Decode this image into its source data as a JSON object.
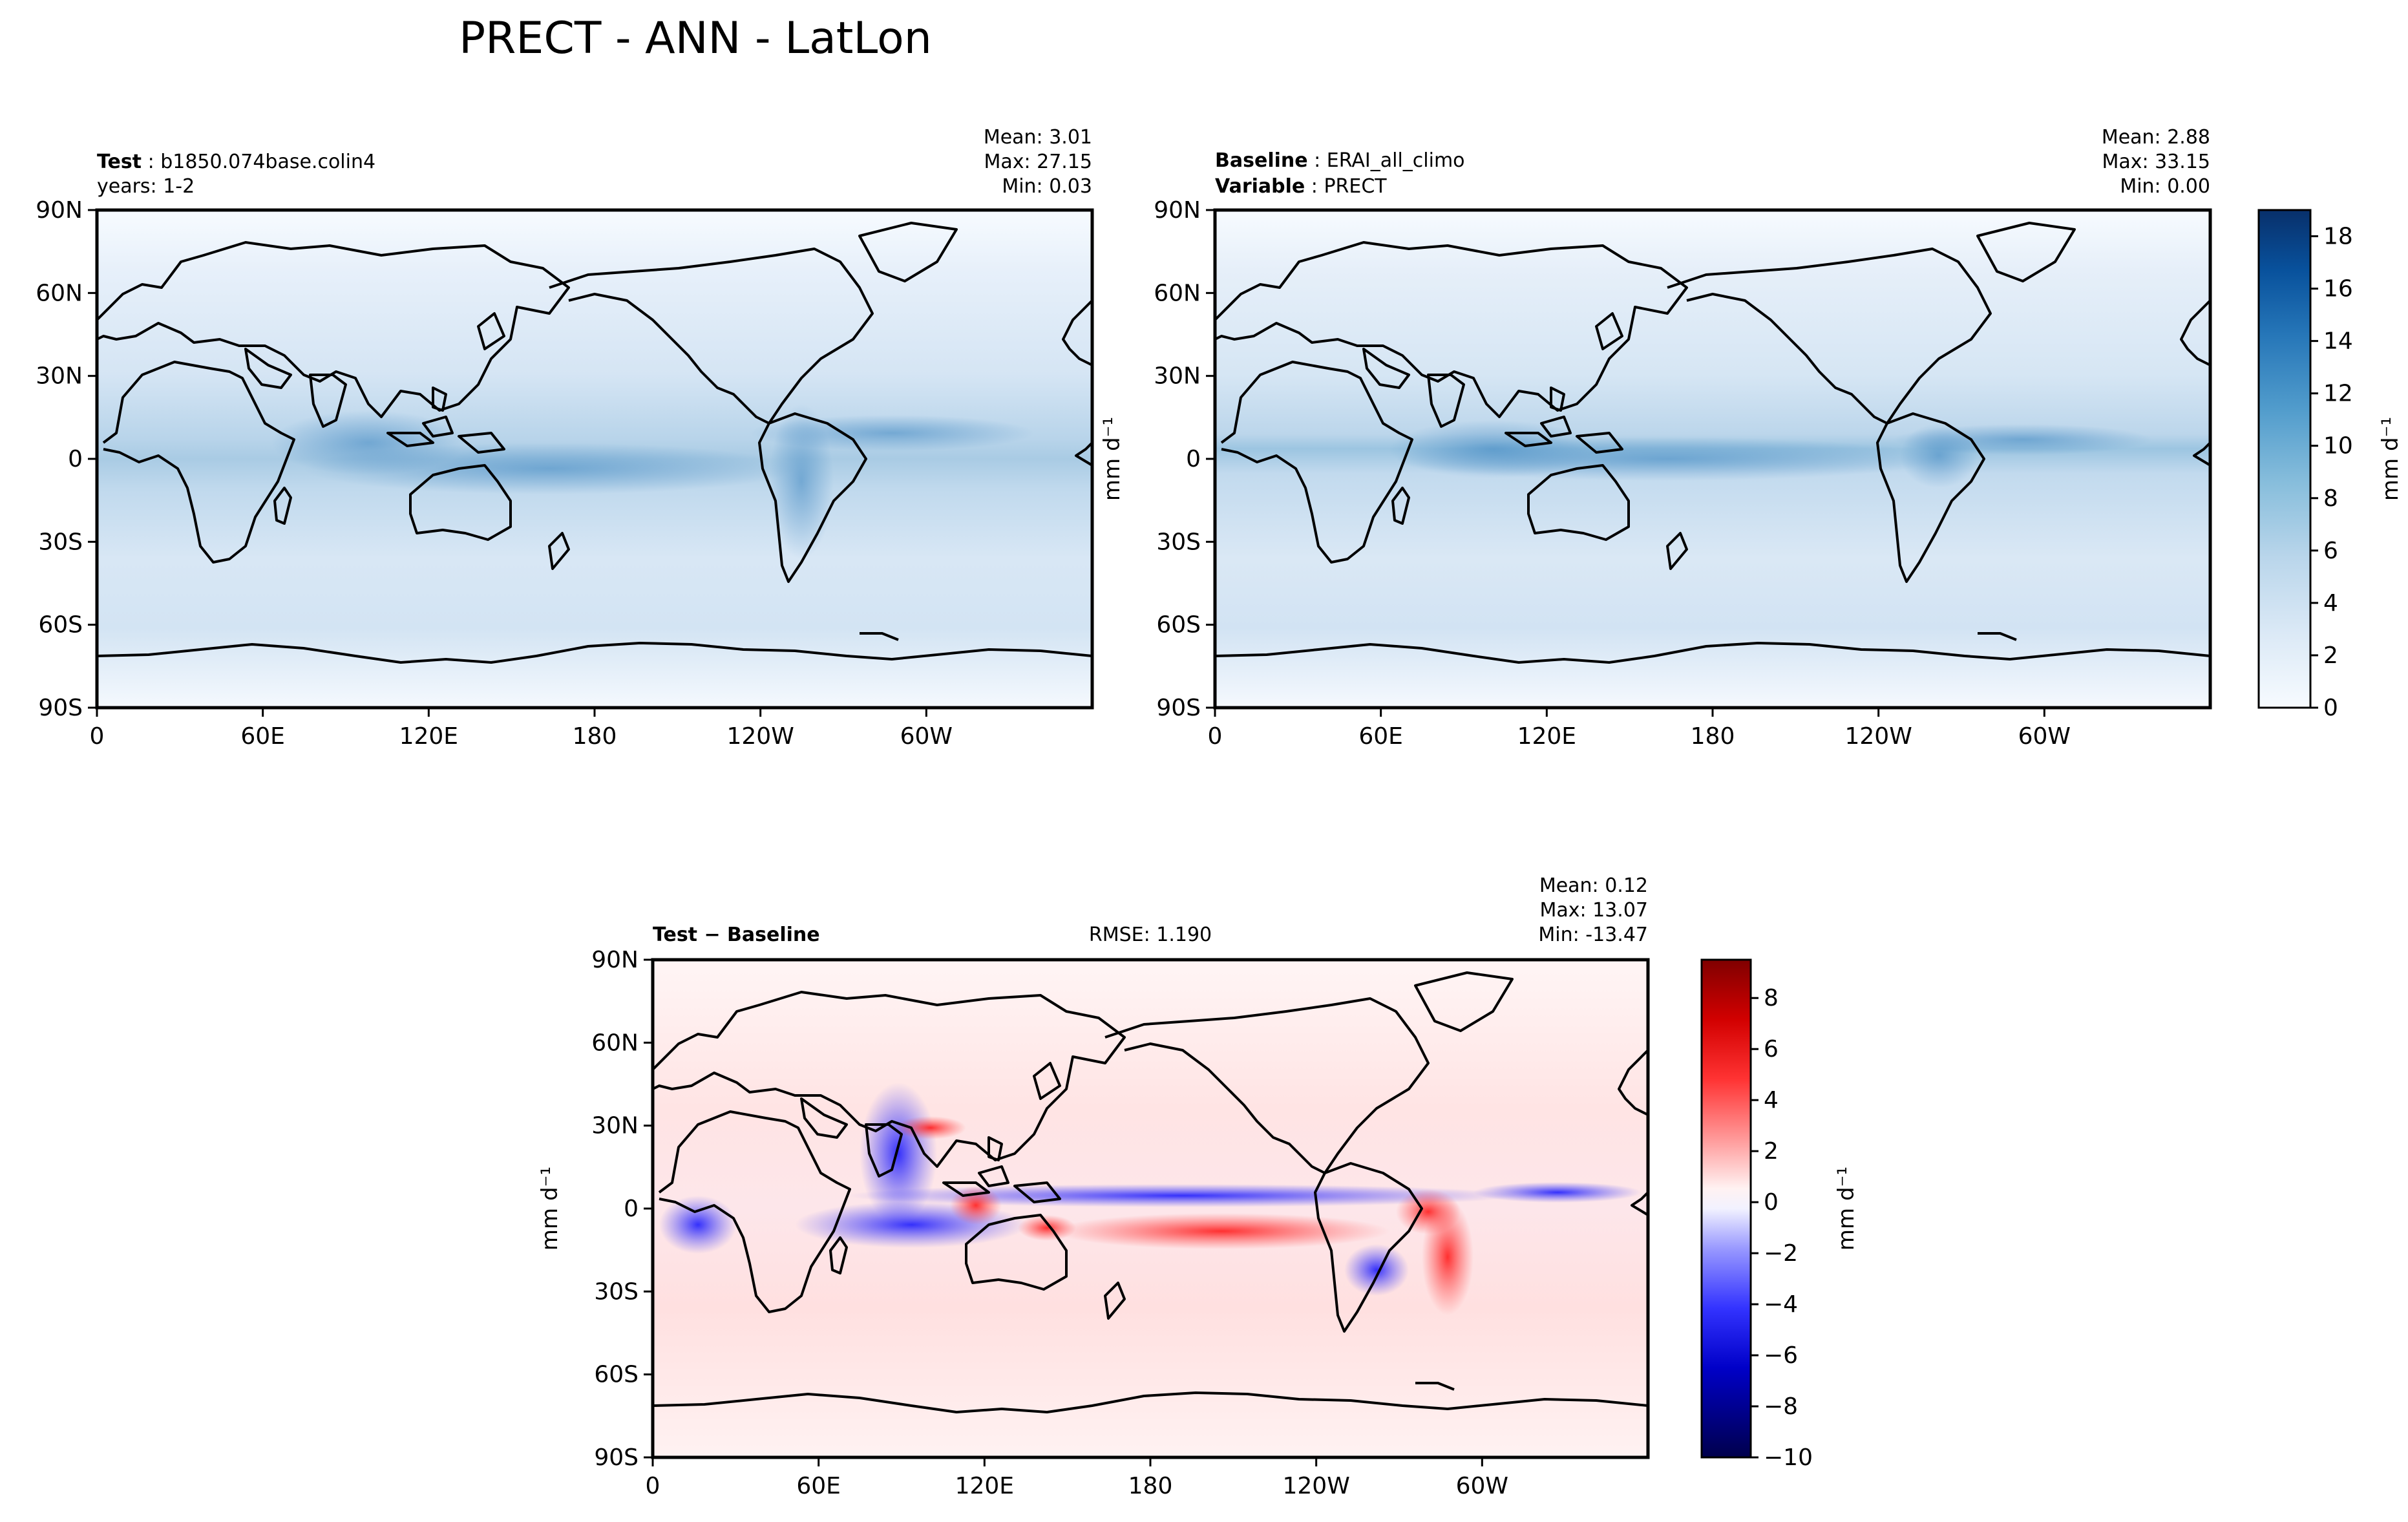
{
  "figure_title": "PRECT - ANN - LatLon",
  "panels": {
    "test": {
      "label_bold": "Test",
      "label_value": "b1850.074base.colin4",
      "line2": "years: 1-2",
      "stats": {
        "mean": "Mean:  3.01",
        "max": "Max: 27.15",
        "min": "Min:  0.03"
      }
    },
    "baseline": {
      "label_bold": "Baseline",
      "label_value": "ERAI_all_climo",
      "line2_bold": "Variable",
      "line2_value": "PRECT",
      "stats": {
        "mean": "Mean:  2.88",
        "max": "Max: 33.15",
        "min": "Min:  0.00"
      }
    },
    "diff": {
      "label": "Test − Baseline",
      "rmse": "RMSE: 1.190",
      "stats": {
        "mean": "Mean:  0.12",
        "max": "Max: 13.07",
        "min": "Min: -13.47"
      }
    }
  },
  "units_label": "mm d⁻¹",
  "colors": {
    "blues": [
      "#f7fbff",
      "#e8f1fa",
      "#dbe9f6",
      "#cde0f1",
      "#bad6eb",
      "#a3cce3",
      "#88bedc",
      "#6aaed6",
      "#519ccc",
      "#3a8ac2",
      "#2676b8",
      "#1462a8",
      "#08519c",
      "#083d7f",
      "#08306b"
    ],
    "diverging": [
      "#00004c",
      "#0000a6",
      "#0000ff",
      "#5555ff",
      "#aaaaff",
      "#f5f5ff",
      "#fff0f0",
      "#ffaaaa",
      "#ff5555",
      "#ff0000",
      "#d00000",
      "#800000"
    ],
    "coast": "#000000"
  },
  "chart_data": [
    {
      "type": "heatmap",
      "name": "test",
      "xlabel": "",
      "ylabel": "",
      "x_ticks": [
        "0",
        "60E",
        "120E",
        "180",
        "120W",
        "60W"
      ],
      "y_ticks": [
        "90N",
        "60N",
        "30N",
        "0",
        "30S",
        "60S",
        "90S"
      ],
      "xlim": [
        0,
        360
      ],
      "ylim": [
        -90,
        90
      ],
      "mean": 3.01,
      "max": 27.15,
      "min": 0.03
    },
    {
      "type": "heatmap",
      "name": "baseline",
      "x_ticks": [
        "0",
        "60E",
        "120E",
        "180",
        "120W",
        "60W"
      ],
      "y_ticks": [
        "90N",
        "60N",
        "30N",
        "0",
        "30S",
        "60S",
        "90S"
      ],
      "xlim": [
        0,
        360
      ],
      "ylim": [
        -90,
        90
      ],
      "mean": 2.88,
      "max": 33.15,
      "min": 0.0,
      "colorbar": {
        "label": "mm d⁻¹",
        "ticks": [
          "0",
          "2",
          "4",
          "6",
          "8",
          "10",
          "12",
          "14",
          "16",
          "18"
        ],
        "range": [
          0,
          19
        ]
      }
    },
    {
      "type": "heatmap",
      "name": "diff",
      "ylabel": "mm d⁻¹",
      "x_ticks": [
        "0",
        "60E",
        "120E",
        "180",
        "120W",
        "60W"
      ],
      "y_ticks": [
        "90N",
        "60N",
        "30N",
        "0",
        "30S",
        "60S",
        "90S"
      ],
      "xlim": [
        0,
        360
      ],
      "ylim": [
        -90,
        90
      ],
      "mean": 0.12,
      "max": 13.07,
      "min": -13.47,
      "rmse": 1.19,
      "colorbar": {
        "label": "mm d⁻¹",
        "ticks": [
          "8",
          "6",
          "4",
          "2",
          "0",
          "−2",
          "−4",
          "−6",
          "−8",
          "−10"
        ],
        "range": [
          -10,
          9.5
        ]
      }
    }
  ]
}
